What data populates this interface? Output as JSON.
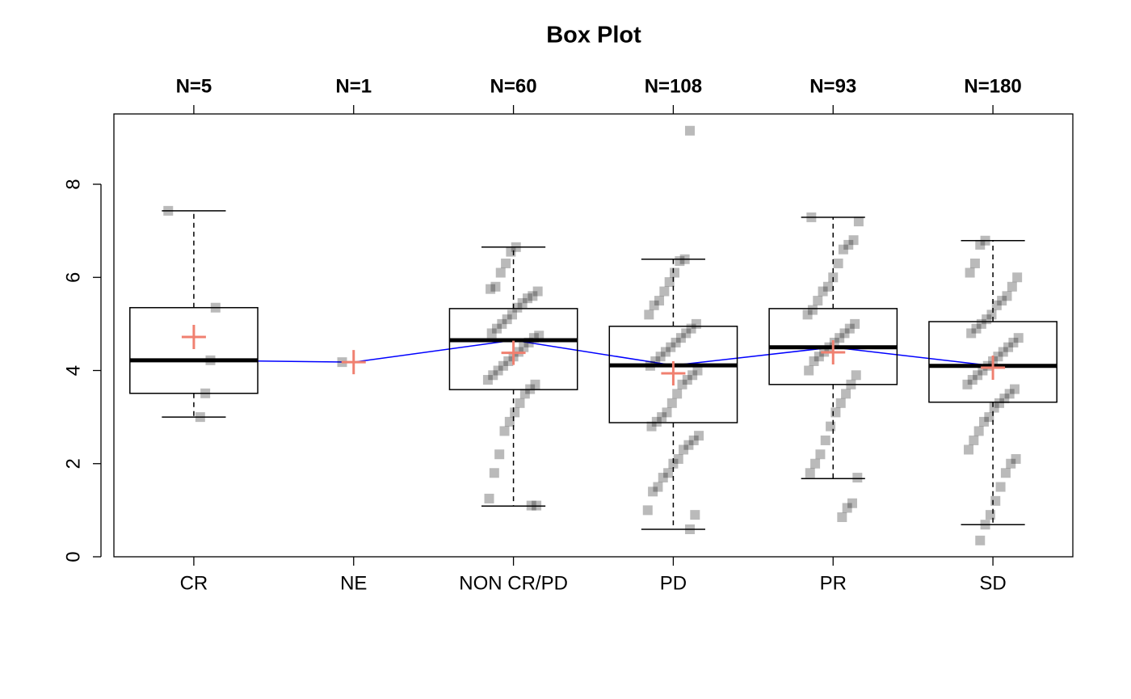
{
  "chart_data": {
    "type": "box",
    "title": "Box Plot",
    "categories": [
      "CR",
      "NE",
      "NON CR/PD",
      "PD",
      "PR",
      "SD"
    ],
    "n_labels": [
      "N=5",
      "N=1",
      "N=60",
      "N=108",
      "N=93",
      "N=180"
    ],
    "ylim": [
      0,
      9.51
    ],
    "yticks": [
      0,
      2,
      4,
      6,
      8
    ],
    "box_color": "#000000",
    "median_line_color": "#0000ff",
    "mean_color": "#f08070",
    "point_color": "rgba(0,0,0,0.27)",
    "boxes": [
      {
        "low": 3.0,
        "q1": 3.51,
        "median": 4.22,
        "q3": 5.35,
        "high": 7.43,
        "mean": 4.72,
        "points": [
          7.43,
          5.35,
          4.22,
          3.51,
          3.0
        ]
      },
      {
        "low": null,
        "q1": null,
        "median": 4.18,
        "q3": null,
        "high": null,
        "mean": 4.18,
        "points": [
          4.18
        ]
      },
      {
        "low": 1.09,
        "q1": 3.59,
        "median": 4.65,
        "q3": 5.33,
        "high": 6.65,
        "mean": 4.38,
        "points": [
          6.65,
          6.55,
          6.3,
          6.1,
          5.8,
          5.75,
          5.7,
          5.6,
          5.55,
          5.45,
          5.35,
          5.2,
          5.1,
          5.0,
          4.9,
          4.8,
          4.75,
          4.7,
          4.6,
          4.5,
          4.4,
          4.3,
          4.2,
          4.1,
          4.0,
          3.9,
          3.8,
          3.7,
          3.6,
          3.5,
          3.3,
          3.1,
          2.9,
          2.7,
          2.2,
          1.8,
          1.25,
          1.1,
          1.1
        ]
      },
      {
        "low": 0.59,
        "q1": 2.88,
        "median": 4.11,
        "q3": 4.95,
        "high": 6.39,
        "mean": 3.94,
        "points": [
          9.15,
          6.39,
          6.35,
          6.1,
          5.9,
          5.7,
          5.5,
          5.4,
          5.2,
          5.0,
          4.9,
          4.8,
          4.7,
          4.6,
          4.5,
          4.4,
          4.3,
          4.2,
          4.1,
          4.0,
          3.9,
          3.8,
          3.7,
          3.5,
          3.3,
          3.1,
          3.0,
          2.9,
          2.8,
          2.6,
          2.5,
          2.4,
          2.3,
          2.1,
          2.0,
          1.8,
          1.7,
          1.5,
          1.4,
          1.0,
          0.9,
          0.59
        ]
      },
      {
        "low": 1.68,
        "q1": 3.7,
        "median": 4.5,
        "q3": 5.33,
        "high": 7.29,
        "mean": 4.39,
        "points": [
          7.29,
          7.2,
          6.8,
          6.7,
          6.6,
          6.3,
          6.0,
          5.8,
          5.7,
          5.5,
          5.3,
          5.2,
          5.0,
          4.9,
          4.8,
          4.7,
          4.6,
          4.5,
          4.4,
          4.3,
          4.2,
          4.0,
          3.9,
          3.7,
          3.5,
          3.3,
          3.1,
          2.8,
          2.5,
          2.2,
          2.0,
          1.8,
          1.7,
          1.15,
          1.05,
          0.85
        ]
      },
      {
        "low": 0.69,
        "q1": 3.32,
        "median": 4.1,
        "q3": 5.05,
        "high": 6.79,
        "mean": 4.06,
        "points": [
          6.79,
          6.7,
          6.3,
          6.1,
          6.0,
          5.8,
          5.6,
          5.5,
          5.4,
          5.2,
          5.1,
          5.0,
          4.9,
          4.8,
          4.7,
          4.6,
          4.5,
          4.4,
          4.3,
          4.2,
          4.1,
          4.0,
          3.9,
          3.8,
          3.7,
          3.6,
          3.5,
          3.4,
          3.3,
          3.2,
          3.0,
          2.9,
          2.7,
          2.5,
          2.3,
          2.1,
          2.0,
          1.8,
          1.5,
          1.2,
          0.9,
          0.69,
          0.35
        ]
      }
    ]
  }
}
